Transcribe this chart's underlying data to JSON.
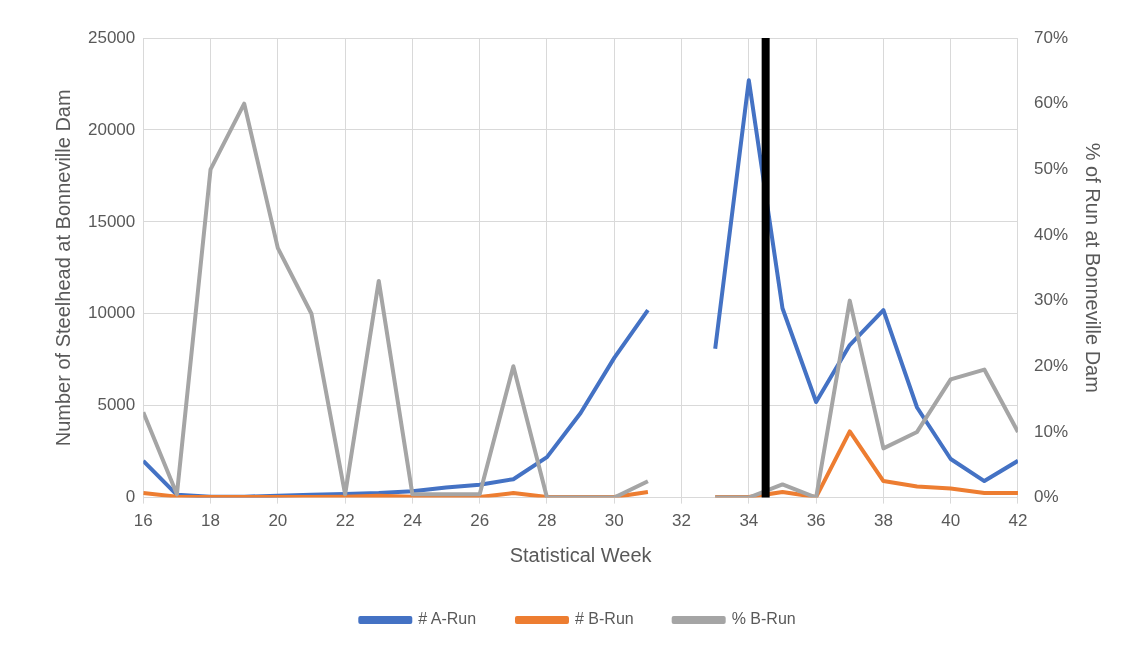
{
  "chart_data": {
    "type": "line",
    "xlabel": "Statistical Week",
    "ylabel": "Number of Steelhead at Bonneville Dam",
    "y2label": "% of Run at Bonneville Dam",
    "x": [
      16,
      17,
      18,
      19,
      20,
      21,
      22,
      23,
      24,
      25,
      26,
      27,
      28,
      29,
      30,
      31,
      32,
      33,
      34,
      35,
      36,
      37,
      38,
      39,
      40,
      41,
      42
    ],
    "series": [
      {
        "name": "# A-Run",
        "color": "#4472c4",
        "values": [
          2000,
          150,
          50,
          50,
          100,
          150,
          200,
          250,
          350,
          550,
          700,
          1000,
          2200,
          4600,
          7600,
          10200,
          null,
          8100,
          22700,
          10300,
          5200,
          8300,
          10200,
          4900,
          2100,
          900,
          2000
        ]
      },
      {
        "name": "# B-Run",
        "color": "#ed7d31",
        "values": [
          250,
          50,
          30,
          30,
          30,
          30,
          50,
          100,
          50,
          30,
          30,
          250,
          30,
          30,
          30,
          300,
          null,
          30,
          30,
          300,
          30,
          3600,
          900,
          600,
          500,
          250,
          250
        ]
      },
      {
        "name": "% B-Run",
        "color": "#a5a5a5",
        "axis": "y2",
        "values": [
          13,
          0.5,
          50,
          60,
          38,
          28,
          0.5,
          33,
          0.5,
          0.5,
          0.5,
          20,
          0,
          0,
          0,
          2.5,
          null,
          0,
          0,
          2,
          0,
          30,
          7.5,
          10,
          18,
          19.5,
          10
        ]
      }
    ],
    "xlim": [
      16,
      42
    ],
    "xticks": [
      16,
      18,
      20,
      22,
      24,
      26,
      28,
      30,
      32,
      34,
      36,
      38,
      40,
      42
    ],
    "ylim": [
      0,
      25000
    ],
    "yticks": [
      0,
      5000,
      10000,
      15000,
      20000,
      25000
    ],
    "y2lim": [
      0,
      70
    ],
    "y2ticks": [
      {
        "value": 0,
        "label": "0%"
      },
      {
        "value": 10,
        "label": "10%"
      },
      {
        "value": 20,
        "label": "20%"
      },
      {
        "value": 30,
        "label": "30%"
      },
      {
        "value": 40,
        "label": "40%"
      },
      {
        "value": 50,
        "label": "50%"
      },
      {
        "value": 60,
        "label": "60%"
      },
      {
        "value": 70,
        "label": "70%"
      }
    ],
    "ref_lines": [
      {
        "axis": "x",
        "value": 34.5,
        "color": "#000000"
      }
    ],
    "grid": true,
    "legend": "bottom",
    "marker": "none",
    "line_style": "solid"
  }
}
